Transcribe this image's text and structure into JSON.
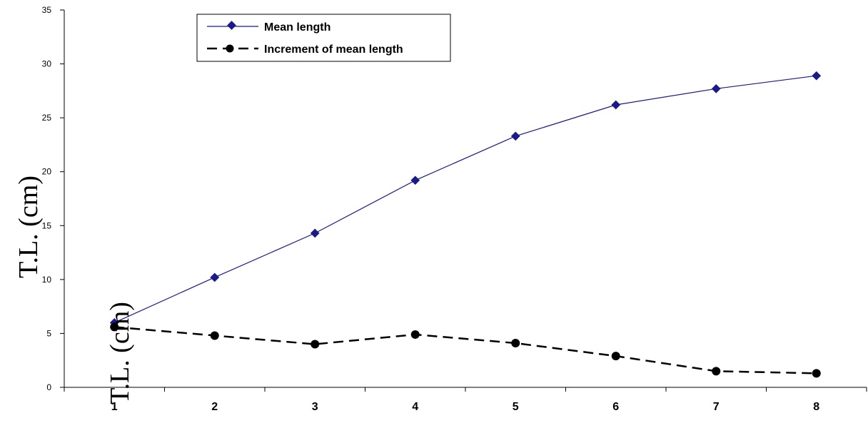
{
  "chart_data": {
    "type": "line",
    "title": "",
    "xlabel": "",
    "ylabel": "T.L. (cm)",
    "ylabel_duplicate": "T.L. (cm)",
    "x": [
      1,
      2,
      3,
      4,
      5,
      6,
      7,
      8
    ],
    "xlim": [
      0.5,
      8.5
    ],
    "ylim": [
      0,
      35
    ],
    "ytick_values": [
      0,
      5,
      10,
      15,
      20,
      25,
      30,
      35
    ],
    "grid": false,
    "legend_position": "top-left",
    "series": [
      {
        "name": "Mean length",
        "values": [
          6.0,
          10.2,
          14.3,
          19.2,
          23.3,
          26.2,
          27.7,
          28.9
        ],
        "color": "#1a1a8a",
        "marker": "diamond",
        "line_style": "solid"
      },
      {
        "name": "Increment of mean length",
        "values": [
          5.6,
          4.8,
          4.0,
          4.9,
          4.1,
          2.9,
          1.5,
          1.3
        ],
        "color": "#000000",
        "marker": "circle",
        "line_style": "dashed"
      }
    ]
  }
}
